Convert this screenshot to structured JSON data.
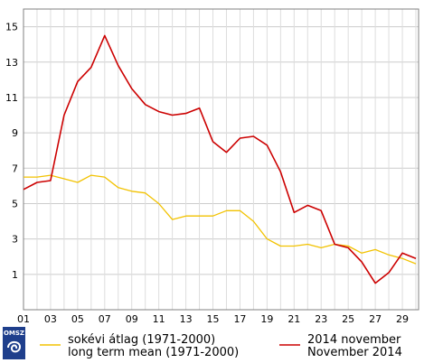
{
  "chart_data": {
    "type": "line",
    "title": "",
    "xlabel": "",
    "ylabel": "",
    "x": [
      1,
      2,
      3,
      4,
      5,
      6,
      7,
      8,
      9,
      10,
      11,
      12,
      13,
      14,
      15,
      16,
      17,
      18,
      19,
      20,
      21,
      22,
      23,
      24,
      25,
      26,
      27,
      28,
      29,
      30
    ],
    "x_tick_labels": [
      "01",
      "03",
      "05",
      "07",
      "09",
      "11",
      "13",
      "15",
      "17",
      "19",
      "21",
      "23",
      "25",
      "27",
      "29"
    ],
    "x_tick_values": [
      1,
      3,
      5,
      7,
      9,
      11,
      13,
      15,
      17,
      19,
      21,
      23,
      25,
      27,
      29
    ],
    "xlim": [
      1,
      30.2
    ],
    "ylim": [
      -1,
      16
    ],
    "y_ticks": [
      1,
      3,
      5,
      7,
      9,
      11,
      13,
      15
    ],
    "grid": true,
    "legend_position": "bottom",
    "series": [
      {
        "name": "sokévi átlag (1971-2000)",
        "name_en": "long term mean (1971-2000)",
        "color": "#f2c200",
        "values": [
          6.5,
          6.5,
          6.6,
          6.4,
          6.2,
          6.6,
          6.5,
          5.9,
          5.7,
          5.6,
          5.0,
          4.1,
          4.3,
          4.3,
          4.3,
          4.6,
          4.6,
          4.0,
          3.0,
          2.6,
          2.6,
          2.7,
          2.5,
          2.7,
          2.6,
          2.2,
          2.4,
          2.1,
          1.9,
          1.6
        ]
      },
      {
        "name": "2014 november",
        "name_en": "November 2014",
        "color": "#cc0000",
        "values": [
          5.8,
          6.2,
          6.3,
          10.0,
          11.9,
          12.7,
          14.5,
          12.8,
          11.5,
          10.6,
          10.2,
          10.0,
          10.1,
          10.4,
          8.5,
          7.9,
          8.7,
          8.8,
          8.3,
          6.8,
          4.5,
          4.9,
          4.6,
          2.7,
          2.5,
          1.7,
          0.5,
          1.1,
          2.2,
          1.9
        ]
      }
    ]
  },
  "logo": {
    "text": "OMSZ"
  }
}
